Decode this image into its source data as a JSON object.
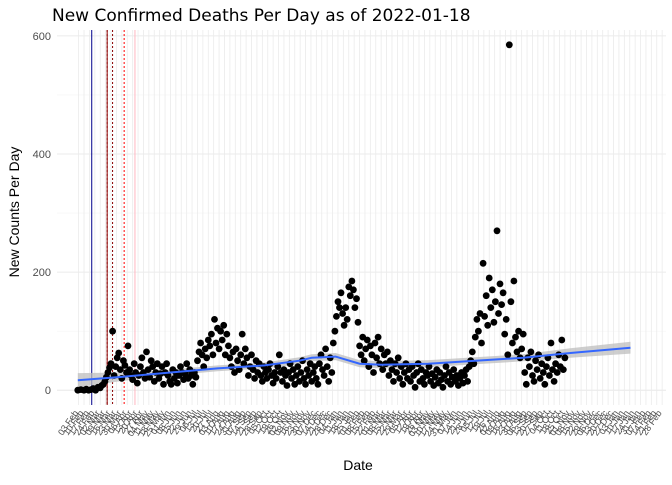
{
  "chart_data": {
    "type": "scatter",
    "title": "New Confirmed Deaths Per Day as of 2022-01-18",
    "xlabel": "Date",
    "ylabel": "New Counts Per Day",
    "ylim": [
      -25,
      610
    ],
    "y_ticks": [
      0,
      200,
      400,
      600
    ],
    "xlim": [
      "2020-01-06",
      "2022-03-05"
    ],
    "x_tick_labels": "dense rotated weekly date labels (illegible)",
    "grid": true,
    "legend": "none",
    "colors": {
      "points": "#000000",
      "smooth_line": "#3366ff",
      "confidence_band": "#bdbdbd",
      "vline_blue": "#00008b",
      "vline_darkred": "#8b0000",
      "vline_red_dotted": "#ff0000",
      "vline_pink": "#ffb6c1"
    },
    "vertical_lines": [
      {
        "date": "2020-02-20",
        "color": "#00008b",
        "style": "solid"
      },
      {
        "date": "2020-03-11",
        "color": "#8b0000",
        "style": "solid"
      },
      {
        "date": "2020-03-11",
        "color": "#8b0000",
        "style": "dotted"
      },
      {
        "date": "2020-03-18",
        "color": "#8b0000",
        "style": "dotted"
      },
      {
        "date": "2020-04-02",
        "color": "#ff0000",
        "style": "dotted"
      },
      {
        "date": "2020-04-16",
        "color": "#ffb6c1",
        "style": "solid"
      }
    ],
    "trend_line": {
      "x": [
        "2020-02-02",
        "2020-04-01",
        "2020-06-01",
        "2020-08-01",
        "2020-10-01",
        "2020-11-15",
        "2020-12-01",
        "2021-01-01",
        "2021-02-01",
        "2021-03-01",
        "2021-05-01",
        "2021-07-01",
        "2021-09-01",
        "2021-11-01",
        "2022-01-18"
      ],
      "y": [
        17,
        23,
        30,
        37,
        42,
        50,
        55,
        57,
        45,
        43,
        45,
        50,
        55,
        63,
        72
      ],
      "band_half_width": [
        12,
        7,
        5,
        5,
        5,
        6,
        6,
        6,
        6,
        6,
        6,
        6,
        6,
        8,
        10
      ]
    },
    "points_start_date": "2020-02-02",
    "points": [
      [
        0,
        0
      ],
      [
        4,
        1
      ],
      [
        8,
        0
      ],
      [
        11,
        2
      ],
      [
        14,
        0
      ],
      [
        17,
        1
      ],
      [
        20,
        3
      ],
      [
        23,
        0
      ],
      [
        26,
        5
      ],
      [
        29,
        4
      ],
      [
        31,
        8
      ],
      [
        33,
        10
      ],
      [
        35,
        15
      ],
      [
        37,
        22
      ],
      [
        39,
        30
      ],
      [
        41,
        38
      ],
      [
        43,
        45
      ],
      [
        45,
        100
      ],
      [
        47,
        25
      ],
      [
        49,
        40
      ],
      [
        51,
        55
      ],
      [
        53,
        63
      ],
      [
        55,
        35
      ],
      [
        57,
        20
      ],
      [
        59,
        50
      ],
      [
        61,
        42
      ],
      [
        63,
        30
      ],
      [
        65,
        75
      ],
      [
        67,
        35
      ],
      [
        69,
        25
      ],
      [
        71,
        18
      ],
      [
        73,
        45
      ],
      [
        75,
        30
      ],
      [
        77,
        12
      ],
      [
        79,
        25
      ],
      [
        81,
        40
      ],
      [
        83,
        55
      ],
      [
        85,
        30
      ],
      [
        87,
        20
      ],
      [
        89,
        65
      ],
      [
        91,
        35
      ],
      [
        93,
        22
      ],
      [
        95,
        50
      ],
      [
        97,
        40
      ],
      [
        99,
        15
      ],
      [
        101,
        30
      ],
      [
        103,
        45
      ],
      [
        105,
        20
      ],
      [
        107,
        28
      ],
      [
        109,
        40
      ],
      [
        111,
        10
      ],
      [
        113,
        30
      ],
      [
        115,
        45
      ],
      [
        117,
        25
      ],
      [
        119,
        15
      ],
      [
        121,
        10
      ],
      [
        123,
        35
      ],
      [
        125,
        20
      ],
      [
        127,
        30
      ],
      [
        129,
        12
      ],
      [
        131,
        25
      ],
      [
        133,
        40
      ],
      [
        135,
        30
      ],
      [
        137,
        18
      ],
      [
        139,
        28
      ],
      [
        141,
        45
      ],
      [
        143,
        20
      ],
      [
        145,
        35
      ],
      [
        147,
        25
      ],
      [
        149,
        10
      ],
      [
        151,
        30
      ],
      [
        153,
        22
      ],
      [
        155,
        50
      ],
      [
        157,
        65
      ],
      [
        159,
        80
      ],
      [
        161,
        60
      ],
      [
        163,
        40
      ],
      [
        165,
        70
      ],
      [
        167,
        55
      ],
      [
        169,
        85
      ],
      [
        171,
        75
      ],
      [
        173,
        95
      ],
      [
        175,
        60
      ],
      [
        177,
        120
      ],
      [
        179,
        80
      ],
      [
        181,
        105
      ],
      [
        183,
        70
      ],
      [
        185,
        100
      ],
      [
        187,
        85
      ],
      [
        189,
        110
      ],
      [
        191,
        60
      ],
      [
        193,
        95
      ],
      [
        195,
        75
      ],
      [
        197,
        55
      ],
      [
        199,
        40
      ],
      [
        201,
        65
      ],
      [
        203,
        30
      ],
      [
        205,
        70
      ],
      [
        207,
        50
      ],
      [
        209,
        35
      ],
      [
        211,
        60
      ],
      [
        213,
        95
      ],
      [
        215,
        45
      ],
      [
        217,
        70
      ],
      [
        219,
        55
      ],
      [
        221,
        25
      ],
      [
        223,
        40
      ],
      [
        225,
        60
      ],
      [
        227,
        35
      ],
      [
        229,
        20
      ],
      [
        231,
        50
      ],
      [
        233,
        30
      ],
      [
        235,
        45
      ],
      [
        237,
        25
      ],
      [
        239,
        15
      ],
      [
        241,
        40
      ],
      [
        243,
        30
      ],
      [
        245,
        20
      ],
      [
        247,
        35
      ],
      [
        249,
        45
      ],
      [
        251,
        25
      ],
      [
        253,
        12
      ],
      [
        255,
        30
      ],
      [
        257,
        20
      ],
      [
        259,
        40
      ],
      [
        261,
        60
      ],
      [
        263,
        30
      ],
      [
        265,
        15
      ],
      [
        267,
        35
      ],
      [
        269,
        25
      ],
      [
        271,
        8
      ],
      [
        273,
        30
      ],
      [
        275,
        45
      ],
      [
        277,
        20
      ],
      [
        279,
        35
      ],
      [
        281,
        10
      ],
      [
        283,
        25
      ],
      [
        285,
        40
      ],
      [
        287,
        15
      ],
      [
        289,
        30
      ],
      [
        291,
        50
      ],
      [
        293,
        20
      ],
      [
        295,
        10
      ],
      [
        297,
        35
      ],
      [
        299,
        25
      ],
      [
        301,
        45
      ],
      [
        303,
        15
      ],
      [
        305,
        30
      ],
      [
        307,
        40
      ],
      [
        309,
        20
      ],
      [
        311,
        10
      ],
      [
        313,
        45
      ],
      [
        315,
        60
      ],
      [
        317,
        35
      ],
      [
        319,
        25
      ],
      [
        321,
        70
      ],
      [
        323,
        40
      ],
      [
        325,
        15
      ],
      [
        327,
        55
      ],
      [
        329,
        30
      ],
      [
        331,
        80
      ],
      [
        333,
        100
      ],
      [
        335,
        125
      ],
      [
        337,
        150
      ],
      [
        339,
        140
      ],
      [
        341,
        165
      ],
      [
        343,
        130
      ],
      [
        345,
        110
      ],
      [
        347,
        140
      ],
      [
        349,
        120
      ],
      [
        351,
        175
      ],
      [
        353,
        160
      ],
      [
        355,
        185
      ],
      [
        357,
        170
      ],
      [
        359,
        140
      ],
      [
        361,
        155
      ],
      [
        363,
        115
      ],
      [
        365,
        75
      ],
      [
        367,
        60
      ],
      [
        369,
        90
      ],
      [
        371,
        50
      ],
      [
        373,
        70
      ],
      [
        375,
        85
      ],
      [
        377,
        40
      ],
      [
        379,
        75
      ],
      [
        381,
        60
      ],
      [
        383,
        30
      ],
      [
        385,
        80
      ],
      [
        387,
        55
      ],
      [
        389,
        90
      ],
      [
        391,
        45
      ],
      [
        393,
        70
      ],
      [
        395,
        35
      ],
      [
        397,
        60
      ],
      [
        399,
        45
      ],
      [
        401,
        65
      ],
      [
        403,
        25
      ],
      [
        405,
        50
      ],
      [
        407,
        35
      ],
      [
        409,
        15
      ],
      [
        411,
        45
      ],
      [
        413,
        30
      ],
      [
        415,
        55
      ],
      [
        417,
        20
      ],
      [
        419,
        40
      ],
      [
        421,
        10
      ],
      [
        423,
        30
      ],
      [
        425,
        45
      ],
      [
        427,
        20
      ],
      [
        429,
        35
      ],
      [
        431,
        15
      ],
      [
        433,
        40
      ],
      [
        435,
        25
      ],
      [
        437,
        5
      ],
      [
        439,
        30
      ],
      [
        441,
        45
      ],
      [
        443,
        15
      ],
      [
        445,
        35
      ],
      [
        447,
        20
      ],
      [
        449,
        10
      ],
      [
        451,
        30
      ],
      [
        453,
        25
      ],
      [
        455,
        40
      ],
      [
        457,
        15
      ],
      [
        459,
        28
      ],
      [
        461,
        8
      ],
      [
        463,
        22
      ],
      [
        465,
        35
      ],
      [
        467,
        12
      ],
      [
        469,
        30
      ],
      [
        471,
        18
      ],
      [
        473,
        5
      ],
      [
        475,
        25
      ],
      [
        477,
        40
      ],
      [
        479,
        15
      ],
      [
        481,
        30
      ],
      [
        483,
        10
      ],
      [
        485,
        22
      ],
      [
        487,
        35
      ],
      [
        489,
        15
      ],
      [
        491,
        25
      ],
      [
        493,
        8
      ],
      [
        495,
        20
      ],
      [
        497,
        30
      ],
      [
        499,
        12
      ],
      [
        501,
        25
      ],
      [
        503,
        35
      ],
      [
        505,
        15
      ],
      [
        507,
        40
      ],
      [
        509,
        50
      ],
      [
        511,
        65
      ],
      [
        513,
        45
      ],
      [
        515,
        90
      ],
      [
        517,
        120
      ],
      [
        519,
        100
      ],
      [
        521,
        130
      ],
      [
        523,
        80
      ],
      [
        525,
        215
      ],
      [
        527,
        125
      ],
      [
        529,
        160
      ],
      [
        531,
        110
      ],
      [
        533,
        190
      ],
      [
        535,
        140
      ],
      [
        537,
        170
      ],
      [
        539,
        115
      ],
      [
        541,
        150
      ],
      [
        543,
        270
      ],
      [
        545,
        130
      ],
      [
        547,
        180
      ],
      [
        549,
        145
      ],
      [
        551,
        165
      ],
      [
        553,
        95
      ],
      [
        555,
        120
      ],
      [
        557,
        60
      ],
      [
        559,
        585
      ],
      [
        561,
        150
      ],
      [
        563,
        80
      ],
      [
        565,
        185
      ],
      [
        567,
        90
      ],
      [
        569,
        65
      ],
      [
        571,
        100
      ],
      [
        573,
        55
      ],
      [
        575,
        70
      ],
      [
        577,
        95
      ],
      [
        579,
        30
      ],
      [
        581,
        10
      ],
      [
        583,
        55
      ],
      [
        585,
        40
      ],
      [
        587,
        65
      ],
      [
        589,
        25
      ],
      [
        591,
        15
      ],
      [
        593,
        50
      ],
      [
        595,
        35
      ],
      [
        597,
        60
      ],
      [
        599,
        20
      ],
      [
        601,
        45
      ],
      [
        603,
        30
      ],
      [
        605,
        10
      ],
      [
        607,
        40
      ],
      [
        609,
        55
      ],
      [
        611,
        25
      ],
      [
        613,
        80
      ],
      [
        615,
        35
      ],
      [
        617,
        15
      ],
      [
        619,
        45
      ],
      [
        621,
        30
      ],
      [
        623,
        60
      ],
      [
        625,
        40
      ],
      [
        627,
        85
      ],
      [
        629,
        35
      ],
      [
        631,
        55
      ]
    ]
  }
}
